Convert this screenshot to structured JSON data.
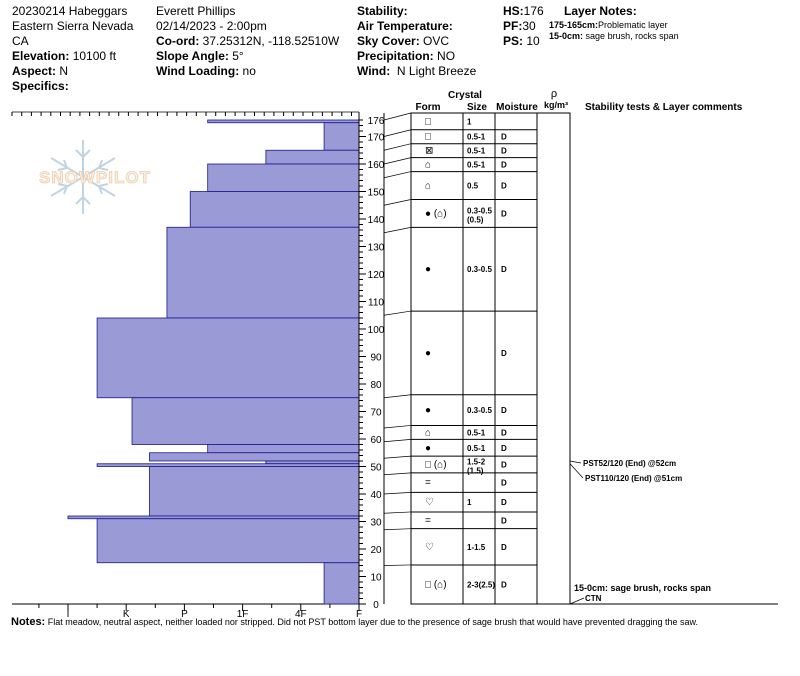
{
  "header": {
    "location": {
      "line1": "20230214 Habeggars",
      "line2": "Eastern Sierra Nevada",
      "line3": "CA",
      "elevation_label": "Elevation:",
      "elevation": "10100 ft",
      "aspect_label": "Aspect:",
      "aspect": "N",
      "specifics_label": "Specifics:"
    },
    "observer": {
      "name": "Everett Phillips",
      "datetime": "02/14/2023 - 2:00pm",
      "coord_label": "Co-ord:",
      "coord": "37.25312N, -118.52510W",
      "slope_label": "Slope Angle:",
      "slope": "5°",
      "wind_loading_label": "Wind Loading:",
      "wind_loading": "no"
    },
    "conditions": {
      "stability_label": "Stability:",
      "air_temp_label": "Air Temperature:",
      "sky_label": "Sky Cover:",
      "sky": "OVC",
      "precip_label": "Precipitation:",
      "precip": "NO",
      "wind_label": "Wind:",
      "wind": "N Light Breeze"
    },
    "snow": {
      "hs_label": "HS:",
      "hs": "176",
      "pf_label": "PF:",
      "pf": "30",
      "ps_label": "PS:",
      "ps": "10"
    },
    "layer_notes": {
      "title": "Layer Notes:",
      "notes": [
        {
          "range": "175-165cm:",
          "text": "Problematic layer"
        },
        {
          "range": "15-0cm:",
          "text": "sage brush, rocks span"
        }
      ]
    }
  },
  "watermark": "SNOWPILOT",
  "table_headers": {
    "crystal": "Crystal",
    "form": "Form",
    "size": "Size",
    "moisture": "Moisture",
    "rho": "ρ",
    "density_unit": "kg/m³",
    "stability": "Stability tests & Layer comments"
  },
  "chart_data": {
    "type": "snow-profile-hardness",
    "hs": 176,
    "x_ticks": [
      "I",
      "K",
      "P",
      "1F",
      "4F",
      "F"
    ],
    "x_hardness_values": [
      5,
      4,
      3,
      2,
      1,
      0
    ],
    "y_ticks": [
      0,
      10,
      20,
      30,
      40,
      50,
      60,
      70,
      80,
      90,
      100,
      110,
      120,
      130,
      140,
      150,
      160,
      170,
      176
    ],
    "hardness_layers": [
      {
        "top": 176,
        "bottom": 175,
        "hardness": 2.6
      },
      {
        "top": 175,
        "bottom": 165,
        "hardness": 0.6
      },
      {
        "top": 165,
        "bottom": 160,
        "hardness": 1.6
      },
      {
        "top": 160,
        "bottom": 150,
        "hardness": 2.6
      },
      {
        "top": 150,
        "bottom": 137,
        "hardness": 2.9
      },
      {
        "top": 137,
        "bottom": 104,
        "hardness": 3.3
      },
      {
        "top": 104,
        "bottom": 75,
        "hardness": 4.5
      },
      {
        "top": 75,
        "bottom": 58,
        "hardness": 3.9
      },
      {
        "top": 58,
        "bottom": 55,
        "hardness": 2.6
      },
      {
        "top": 55,
        "bottom": 52,
        "hardness": 3.6
      },
      {
        "top": 52,
        "bottom": 51,
        "hardness": 1.6
      },
      {
        "top": 51,
        "bottom": 50,
        "hardness": 4.5
      },
      {
        "top": 50,
        "bottom": 32,
        "hardness": 3.6
      },
      {
        "top": 32,
        "bottom": 31,
        "hardness": 5.0
      },
      {
        "top": 31,
        "bottom": 15,
        "hardness": 4.5
      },
      {
        "top": 15,
        "bottom": 0,
        "hardness": 0.6
      }
    ],
    "layers": [
      {
        "top": 176,
        "bottom": 170,
        "form": "□",
        "size": "1",
        "moisture": ""
      },
      {
        "top": 170,
        "bottom": 165,
        "form": "□",
        "size": "0.5-1",
        "moisture": "D"
      },
      {
        "top": 165,
        "bottom": 160,
        "form": "⊠",
        "size": "0.5-1",
        "moisture": "D"
      },
      {
        "top": 160,
        "bottom": 155,
        "form": "⌂",
        "size": "0.5-1",
        "moisture": "D"
      },
      {
        "top": 155,
        "bottom": 145,
        "form": "⌂",
        "size": "0.5",
        "moisture": "D"
      },
      {
        "top": 145,
        "bottom": 135,
        "form": "● (⌂)",
        "size": "0.3-0.5",
        "size2": "(0.5)",
        "moisture": "D"
      },
      {
        "top": 135,
        "bottom": 105,
        "form": "●",
        "size": "0.3-0.5",
        "moisture": "D"
      },
      {
        "top": 105,
        "bottom": 75,
        "form": "●",
        "size": "",
        "moisture": "D"
      },
      {
        "top": 75,
        "bottom": 64,
        "form": "●",
        "size": "0.3-0.5",
        "moisture": "D"
      },
      {
        "top": 64,
        "bottom": 59,
        "form": "⌂",
        "size": "0.5-1",
        "moisture": "D"
      },
      {
        "top": 59,
        "bottom": 53,
        "form": "●",
        "size": "0.5-1",
        "moisture": "D"
      },
      {
        "top": 53,
        "bottom": 47,
        "form": "□ (⌂)",
        "size": "1.5-2",
        "size2": "(1.5)",
        "moisture": "D"
      },
      {
        "top": 47,
        "bottom": 40,
        "form": "=",
        "size": "",
        "moisture": "D"
      },
      {
        "top": 40,
        "bottom": 33,
        "form": "♡",
        "size": "1",
        "moisture": "D"
      },
      {
        "top": 33,
        "bottom": 27,
        "form": "=",
        "size": "",
        "moisture": "D"
      },
      {
        "top": 27,
        "bottom": 14,
        "form": "♡",
        "size": "1-1.5",
        "moisture": "D"
      },
      {
        "top": 14,
        "bottom": 0,
        "form": "□ (⌂)",
        "size": "2-3(2.5)",
        "moisture": "D"
      }
    ],
    "stability_tests": [
      {
        "depth": 52,
        "text": "PST52/120 (End) @52cm"
      },
      {
        "depth": 51,
        "text": "PST110/120 (End) @51cm"
      }
    ],
    "layer_comments": [
      {
        "depth": 0,
        "range": "15-0cm:",
        "text": "sage brush, rocks span",
        "code": "CTN"
      }
    ]
  },
  "footer": {
    "notes_label": "Notes:",
    "notes_text": "Flat meadow, neutral aspect, neither loaded nor stripped. Did not PST bottom layer due to the presence of sage brush that would have prevented dragging the saw."
  }
}
